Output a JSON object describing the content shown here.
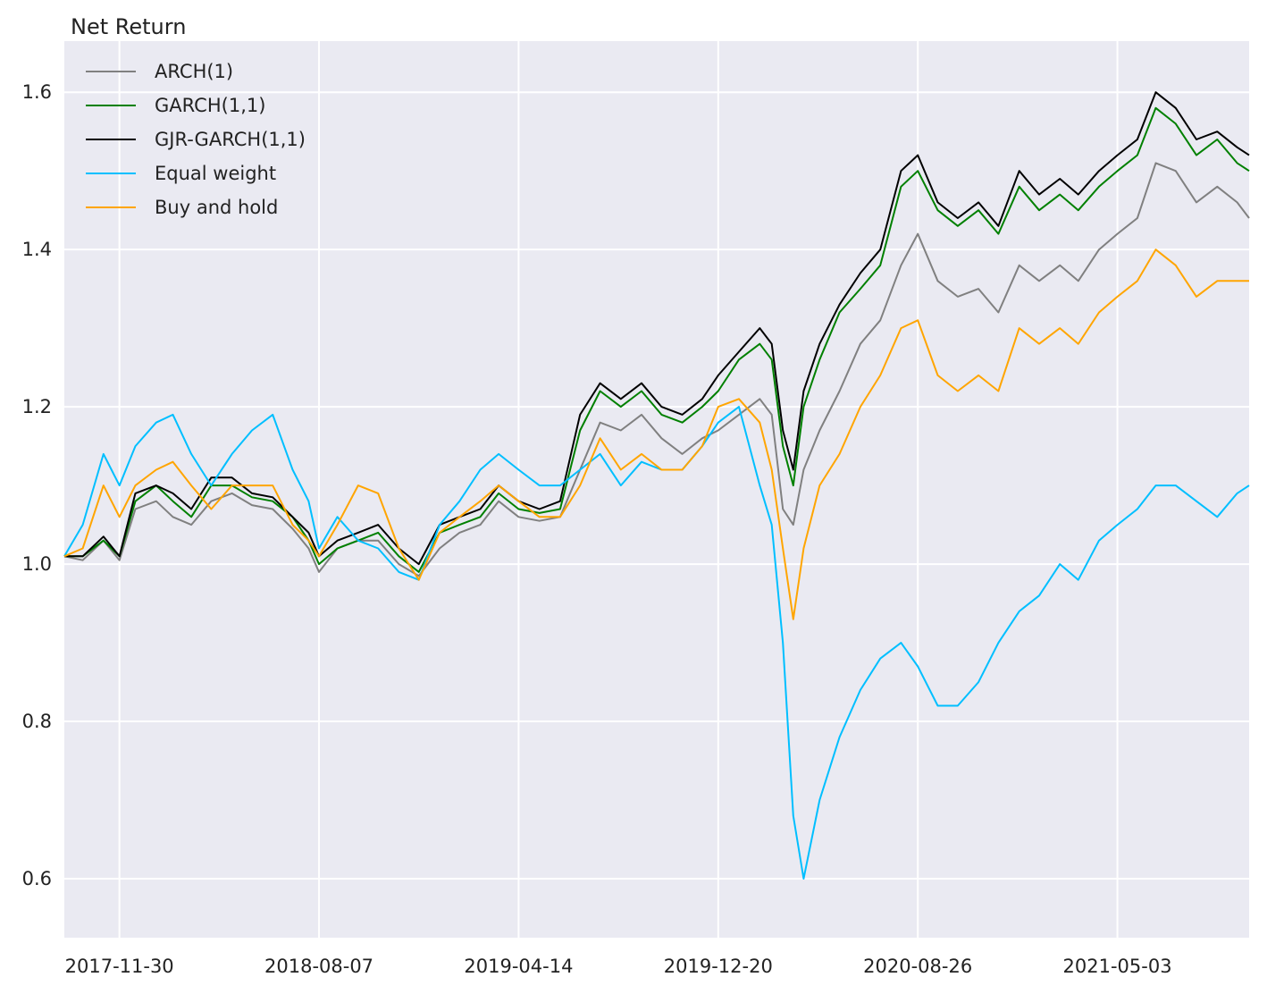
{
  "chart_data": {
    "type": "line",
    "title": "",
    "ylabel": "Net Return",
    "xlabel": "",
    "x_ticks": [
      "2017-11-30",
      "2018-08-07",
      "2019-04-14",
      "2019-12-20",
      "2020-08-26",
      "2021-05-03"
    ],
    "x_range": [
      "2017-09-22",
      "2021-10-15"
    ],
    "y_ticks": [
      "0.6",
      "0.8",
      "1.0",
      "1.2",
      "1.4",
      "1.6"
    ],
    "ylim": [
      0.525,
      1.665
    ],
    "grid": true,
    "legend_position": "top-left",
    "x": [
      "2017-09-22",
      "2017-10-15",
      "2017-11-10",
      "2017-11-30",
      "2017-12-20",
      "2018-01-15",
      "2018-02-05",
      "2018-02-28",
      "2018-03-25",
      "2018-04-20",
      "2018-05-15",
      "2018-06-10",
      "2018-07-05",
      "2018-07-25",
      "2018-08-07",
      "2018-08-30",
      "2018-09-25",
      "2018-10-20",
      "2018-11-15",
      "2018-12-10",
      "2019-01-05",
      "2019-01-30",
      "2019-02-25",
      "2019-03-20",
      "2019-04-14",
      "2019-05-10",
      "2019-06-05",
      "2019-06-30",
      "2019-07-25",
      "2019-08-20",
      "2019-09-15",
      "2019-10-10",
      "2019-11-05",
      "2019-11-30",
      "2019-12-20",
      "2020-01-15",
      "2020-02-10",
      "2020-02-25",
      "2020-03-10",
      "2020-03-23",
      "2020-04-05",
      "2020-04-25",
      "2020-05-20",
      "2020-06-15",
      "2020-07-10",
      "2020-08-05",
      "2020-08-26",
      "2020-09-20",
      "2020-10-15",
      "2020-11-10",
      "2020-12-05",
      "2020-12-31",
      "2021-01-25",
      "2021-02-20",
      "2021-03-15",
      "2021-04-10",
      "2021-05-03",
      "2021-05-28",
      "2021-06-20",
      "2021-07-15",
      "2021-08-10",
      "2021-09-05",
      "2021-09-30",
      "2021-10-15"
    ],
    "series": [
      {
        "name": "ARCH(1)",
        "color": "#808080",
        "values": [
          1.01,
          1.005,
          1.03,
          1.005,
          1.07,
          1.08,
          1.06,
          1.05,
          1.08,
          1.09,
          1.075,
          1.07,
          1.045,
          1.02,
          0.99,
          1.02,
          1.03,
          1.03,
          1.0,
          0.985,
          1.02,
          1.04,
          1.05,
          1.08,
          1.06,
          1.055,
          1.06,
          1.12,
          1.18,
          1.17,
          1.19,
          1.16,
          1.14,
          1.16,
          1.17,
          1.19,
          1.21,
          1.19,
          1.07,
          1.05,
          1.12,
          1.17,
          1.22,
          1.28,
          1.31,
          1.38,
          1.42,
          1.36,
          1.34,
          1.35,
          1.32,
          1.38,
          1.36,
          1.38,
          1.36,
          1.4,
          1.42,
          1.44,
          1.51,
          1.5,
          1.46,
          1.48,
          1.46,
          1.44
        ]
      },
      {
        "name": "GARCH(1,1)",
        "color": "#008000",
        "values": [
          1.01,
          1.01,
          1.03,
          1.01,
          1.08,
          1.1,
          1.08,
          1.06,
          1.1,
          1.1,
          1.085,
          1.08,
          1.06,
          1.03,
          1.0,
          1.02,
          1.03,
          1.04,
          1.01,
          0.99,
          1.04,
          1.05,
          1.06,
          1.09,
          1.07,
          1.065,
          1.07,
          1.17,
          1.22,
          1.2,
          1.22,
          1.19,
          1.18,
          1.2,
          1.22,
          1.26,
          1.28,
          1.26,
          1.15,
          1.1,
          1.2,
          1.26,
          1.32,
          1.35,
          1.38,
          1.48,
          1.5,
          1.45,
          1.43,
          1.45,
          1.42,
          1.48,
          1.45,
          1.47,
          1.45,
          1.48,
          1.5,
          1.52,
          1.58,
          1.56,
          1.52,
          1.54,
          1.51,
          1.5
        ]
      },
      {
        "name": "GJR-GARCH(1,1)",
        "color": "#000000",
        "values": [
          1.01,
          1.01,
          1.035,
          1.01,
          1.09,
          1.1,
          1.09,
          1.07,
          1.11,
          1.11,
          1.09,
          1.085,
          1.06,
          1.04,
          1.01,
          1.03,
          1.04,
          1.05,
          1.02,
          1.0,
          1.05,
          1.06,
          1.07,
          1.1,
          1.08,
          1.07,
          1.08,
          1.19,
          1.23,
          1.21,
          1.23,
          1.2,
          1.19,
          1.21,
          1.24,
          1.27,
          1.3,
          1.28,
          1.17,
          1.12,
          1.22,
          1.28,
          1.33,
          1.37,
          1.4,
          1.5,
          1.52,
          1.46,
          1.44,
          1.46,
          1.43,
          1.5,
          1.47,
          1.49,
          1.47,
          1.5,
          1.52,
          1.54,
          1.6,
          1.58,
          1.54,
          1.55,
          1.53,
          1.52
        ]
      },
      {
        "name": "Equal weight",
        "color": "#00bfff",
        "values": [
          1.01,
          1.05,
          1.14,
          1.1,
          1.15,
          1.18,
          1.19,
          1.14,
          1.1,
          1.14,
          1.17,
          1.19,
          1.12,
          1.08,
          1.02,
          1.06,
          1.03,
          1.02,
          0.99,
          0.98,
          1.05,
          1.08,
          1.12,
          1.14,
          1.12,
          1.1,
          1.1,
          1.12,
          1.14,
          1.1,
          1.13,
          1.12,
          1.12,
          1.15,
          1.18,
          1.2,
          1.1,
          1.05,
          0.9,
          0.68,
          0.6,
          0.7,
          0.78,
          0.84,
          0.88,
          0.9,
          0.87,
          0.82,
          0.82,
          0.85,
          0.9,
          0.94,
          0.96,
          1.0,
          0.98,
          1.03,
          1.05,
          1.07,
          1.1,
          1.1,
          1.08,
          1.06,
          1.09,
          1.1
        ]
      },
      {
        "name": "Buy and hold",
        "color": "#ffa500",
        "values": [
          1.01,
          1.02,
          1.1,
          1.06,
          1.1,
          1.12,
          1.13,
          1.1,
          1.07,
          1.1,
          1.1,
          1.1,
          1.05,
          1.03,
          1.01,
          1.05,
          1.1,
          1.09,
          1.02,
          0.98,
          1.04,
          1.06,
          1.08,
          1.1,
          1.08,
          1.06,
          1.06,
          1.1,
          1.16,
          1.12,
          1.14,
          1.12,
          1.12,
          1.15,
          1.2,
          1.21,
          1.18,
          1.12,
          1.02,
          0.93,
          1.02,
          1.1,
          1.14,
          1.2,
          1.24,
          1.3,
          1.31,
          1.24,
          1.22,
          1.24,
          1.22,
          1.3,
          1.28,
          1.3,
          1.28,
          1.32,
          1.34,
          1.36,
          1.4,
          1.38,
          1.34,
          1.36,
          1.36,
          1.36
        ]
      }
    ]
  }
}
